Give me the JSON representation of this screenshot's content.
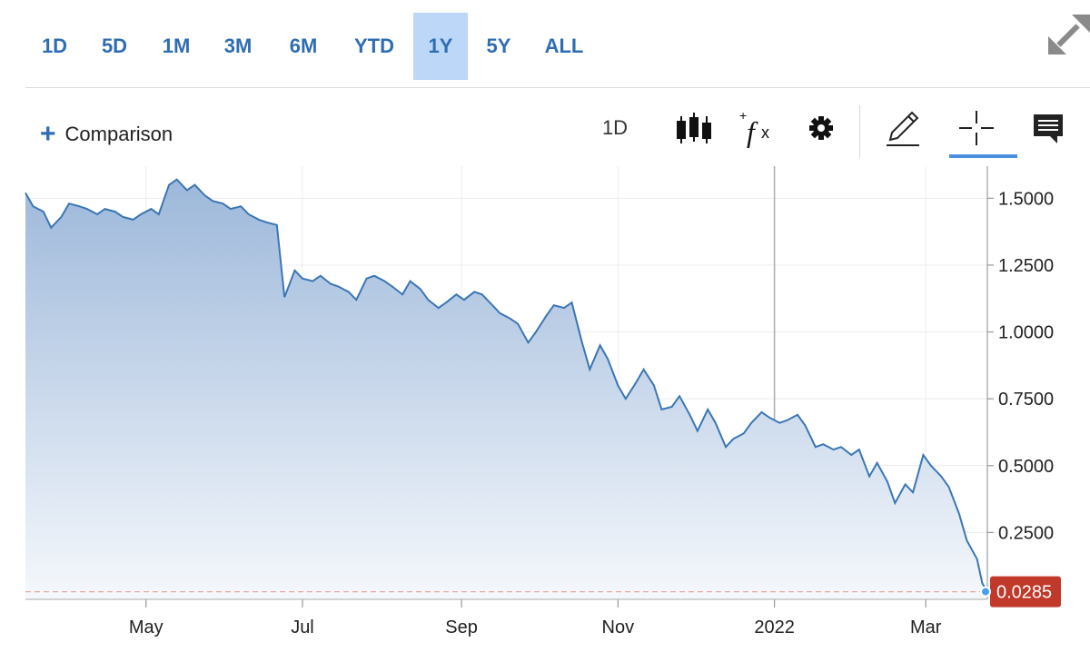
{
  "ranges": [
    {
      "label": "1D",
      "active": false
    },
    {
      "label": "5D",
      "active": false
    },
    {
      "label": "1M",
      "active": false
    },
    {
      "label": "3M",
      "active": false
    },
    {
      "label": "6M",
      "active": false
    },
    {
      "label": "YTD",
      "active": false
    },
    {
      "label": "1Y",
      "active": true
    },
    {
      "label": "5Y",
      "active": false
    },
    {
      "label": "ALL",
      "active": false
    }
  ],
  "toolbar": {
    "comparison_label": "Comparison",
    "interval_label": "1D",
    "icons": [
      "candlestick-icon",
      "function-icon",
      "gear-icon",
      "pencil-icon",
      "crosshair-icon",
      "comment-icon"
    ],
    "active_tool": "crosshair-icon"
  },
  "colors": {
    "accent": "#2f6db3",
    "line": "#3a76b4",
    "active_range_bg": "#bcd7f7",
    "last_price_tag": "#c0392b",
    "last_price_dot": "#48a0f0"
  },
  "chart_data": {
    "type": "area",
    "x_labels": [
      "May",
      "Jul",
      "Sep",
      "Nov",
      "2022",
      "Mar"
    ],
    "y_ticks": [
      "1.5000",
      "1.2500",
      "1.0000",
      "0.7500",
      "0.5000",
      "0.2500"
    ],
    "y_tick_values": [
      1.5,
      1.25,
      1.0,
      0.75,
      0.5,
      0.25
    ],
    "ylim": [
      0,
      1.62
    ],
    "x_range": [
      "2021-03-15",
      "2022-03-25"
    ],
    "grid": true,
    "last_value": 0.0285,
    "last_value_label": "0.0285",
    "series": [
      {
        "points": [
          [
            "2021-03-15",
            1.52
          ],
          [
            "2021-03-18",
            1.47
          ],
          [
            "2021-03-22",
            1.45
          ],
          [
            "2021-03-25",
            1.39
          ],
          [
            "2021-03-29",
            1.43
          ],
          [
            "2021-04-01",
            1.48
          ],
          [
            "2021-04-05",
            1.47
          ],
          [
            "2021-04-08",
            1.46
          ],
          [
            "2021-04-12",
            1.44
          ],
          [
            "2021-04-15",
            1.46
          ],
          [
            "2021-04-19",
            1.45
          ],
          [
            "2021-04-22",
            1.43
          ],
          [
            "2021-04-26",
            1.42
          ],
          [
            "2021-04-29",
            1.44
          ],
          [
            "2021-05-03",
            1.46
          ],
          [
            "2021-05-06",
            1.44
          ],
          [
            "2021-05-10",
            1.55
          ],
          [
            "2021-05-13",
            1.57
          ],
          [
            "2021-05-17",
            1.53
          ],
          [
            "2021-05-20",
            1.55
          ],
          [
            "2021-05-24",
            1.51
          ],
          [
            "2021-05-27",
            1.49
          ],
          [
            "2021-05-31",
            1.48
          ],
          [
            "2021-06-03",
            1.46
          ],
          [
            "2021-06-07",
            1.47
          ],
          [
            "2021-06-10",
            1.44
          ],
          [
            "2021-06-14",
            1.42
          ],
          [
            "2021-06-17",
            1.41
          ],
          [
            "2021-06-21",
            1.4
          ],
          [
            "2021-06-24",
            1.13
          ],
          [
            "2021-06-28",
            1.23
          ],
          [
            "2021-07-01",
            1.2
          ],
          [
            "2021-07-05",
            1.19
          ],
          [
            "2021-07-08",
            1.21
          ],
          [
            "2021-07-12",
            1.18
          ],
          [
            "2021-07-15",
            1.17
          ],
          [
            "2021-07-19",
            1.15
          ],
          [
            "2021-07-22",
            1.12
          ],
          [
            "2021-07-26",
            1.2
          ],
          [
            "2021-07-29",
            1.21
          ],
          [
            "2021-08-02",
            1.19
          ],
          [
            "2021-08-05",
            1.17
          ],
          [
            "2021-08-09",
            1.14
          ],
          [
            "2021-08-12",
            1.19
          ],
          [
            "2021-08-16",
            1.16
          ],
          [
            "2021-08-19",
            1.12
          ],
          [
            "2021-08-23",
            1.09
          ],
          [
            "2021-08-26",
            1.11
          ],
          [
            "2021-08-30",
            1.14
          ],
          [
            "2021-09-02",
            1.12
          ],
          [
            "2021-09-06",
            1.15
          ],
          [
            "2021-09-09",
            1.14
          ],
          [
            "2021-09-13",
            1.1
          ],
          [
            "2021-09-16",
            1.07
          ],
          [
            "2021-09-20",
            1.05
          ],
          [
            "2021-09-23",
            1.03
          ],
          [
            "2021-09-27",
            0.96
          ],
          [
            "2021-09-30",
            1.0
          ],
          [
            "2021-10-04",
            1.06
          ],
          [
            "2021-10-07",
            1.1
          ],
          [
            "2021-10-11",
            1.09
          ],
          [
            "2021-10-14",
            1.11
          ],
          [
            "2021-10-18",
            0.96
          ],
          [
            "2021-10-21",
            0.86
          ],
          [
            "2021-10-25",
            0.95
          ],
          [
            "2021-10-28",
            0.9
          ],
          [
            "2021-11-01",
            0.8
          ],
          [
            "2021-11-04",
            0.75
          ],
          [
            "2021-11-08",
            0.81
          ],
          [
            "2021-11-11",
            0.86
          ],
          [
            "2021-11-15",
            0.8
          ],
          [
            "2021-11-18",
            0.71
          ],
          [
            "2021-11-22",
            0.72
          ],
          [
            "2021-11-25",
            0.76
          ],
          [
            "2021-11-29",
            0.69
          ],
          [
            "2021-12-02",
            0.63
          ],
          [
            "2021-12-06",
            0.71
          ],
          [
            "2021-12-09",
            0.66
          ],
          [
            "2021-12-13",
            0.57
          ],
          [
            "2021-12-16",
            0.6
          ],
          [
            "2021-12-20",
            0.62
          ],
          [
            "2021-12-23",
            0.66
          ],
          [
            "2021-12-27",
            0.7
          ],
          [
            "2021-12-30",
            0.68
          ],
          [
            "2022-01-03",
            0.66
          ],
          [
            "2022-01-06",
            0.67
          ],
          [
            "2022-01-10",
            0.69
          ],
          [
            "2022-01-13",
            0.65
          ],
          [
            "2022-01-17",
            0.57
          ],
          [
            "2022-01-20",
            0.58
          ],
          [
            "2022-01-24",
            0.56
          ],
          [
            "2022-01-27",
            0.57
          ],
          [
            "2022-01-31",
            0.54
          ],
          [
            "2022-02-03",
            0.56
          ],
          [
            "2022-02-07",
            0.46
          ],
          [
            "2022-02-10",
            0.51
          ],
          [
            "2022-02-14",
            0.44
          ],
          [
            "2022-02-17",
            0.36
          ],
          [
            "2022-02-21",
            0.43
          ],
          [
            "2022-02-24",
            0.4
          ],
          [
            "2022-02-28",
            0.54
          ],
          [
            "2022-03-03",
            0.5
          ],
          [
            "2022-03-07",
            0.46
          ],
          [
            "2022-03-10",
            0.42
          ],
          [
            "2022-03-14",
            0.32
          ],
          [
            "2022-03-17",
            0.22
          ],
          [
            "2022-03-21",
            0.15
          ],
          [
            "2022-03-23",
            0.06
          ],
          [
            "2022-03-25",
            0.0285
          ]
        ]
      }
    ]
  }
}
